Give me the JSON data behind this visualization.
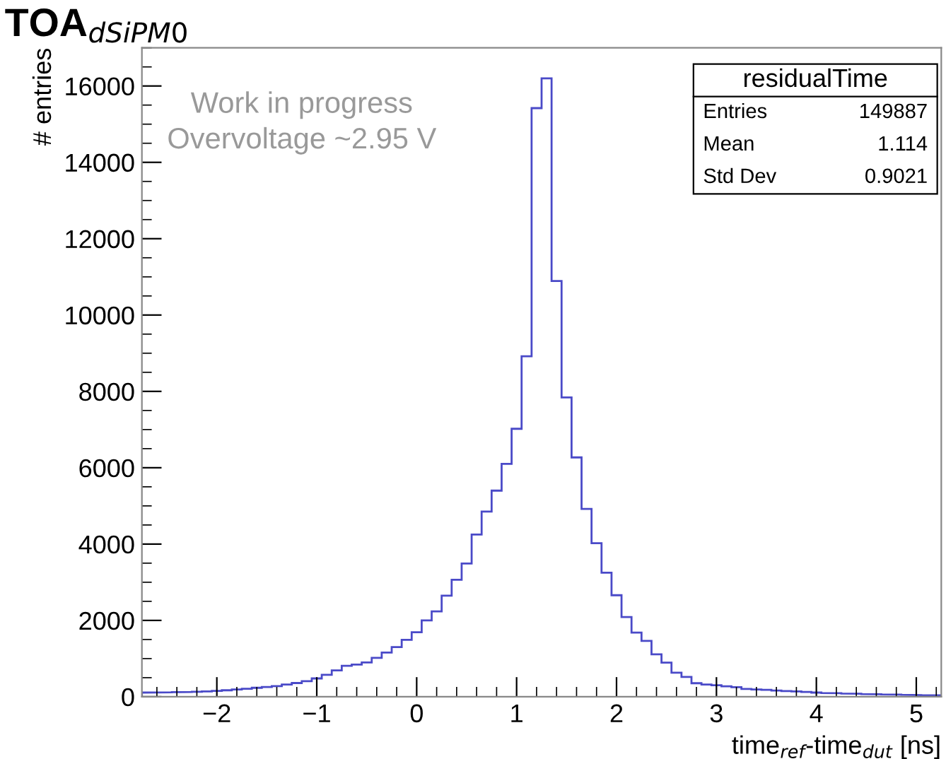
{
  "chart_data": {
    "type": "histogram",
    "title": "TOA$_{dSiPM0}$",
    "xlabel": "time$_{ref}$-time$_{dut}$ [ns]",
    "ylabel": "# entries",
    "bins": [
      -2.75,
      -2.65,
      -2.55,
      -2.45,
      -2.35,
      -2.25,
      -2.15,
      -2.05,
      -1.95,
      -1.85,
      -1.75,
      -1.65,
      -1.55,
      -1.45,
      -1.35,
      -1.25,
      -1.15,
      -1.05,
      -0.95,
      -0.85,
      -0.75,
      -0.65,
      -0.55,
      -0.45,
      -0.35,
      -0.25,
      -0.15,
      -0.05,
      0.05,
      0.15,
      0.25,
      0.35,
      0.45,
      0.55,
      0.65,
      0.75,
      0.85,
      0.95,
      1.05,
      1.15,
      1.25,
      1.35,
      1.45,
      1.55,
      1.65,
      1.75,
      1.85,
      1.95,
      2.05,
      2.15,
      2.25,
      2.35,
      2.45,
      2.55,
      2.65,
      2.75,
      2.85,
      2.95,
      3.05,
      3.15,
      3.25,
      3.35,
      3.45,
      3.55,
      3.65,
      3.75,
      3.85,
      3.95,
      4.05,
      4.15,
      4.25,
      4.35,
      4.45,
      4.55,
      4.65,
      4.75,
      4.85,
      4.95,
      5.05,
      5.15,
      5.25
    ],
    "values": [
      110,
      110,
      115,
      120,
      125,
      130,
      140,
      155,
      170,
      190,
      210,
      235,
      255,
      280,
      320,
      360,
      410,
      480,
      575,
      690,
      810,
      845,
      900,
      1020,
      1160,
      1300,
      1490,
      1690,
      2000,
      2235,
      2650,
      3065,
      3490,
      4250,
      4850,
      5400,
      6100,
      7020,
      8920,
      15420,
      16200,
      10890,
      7840,
      6270,
      4920,
      4025,
      3250,
      2660,
      2090,
      1680,
      1465,
      1110,
      895,
      630,
      520,
      355,
      320,
      300,
      275,
      250,
      205,
      190,
      180,
      165,
      150,
      140,
      125,
      110,
      100,
      95,
      85,
      80,
      70,
      65,
      60,
      55,
      50,
      45,
      40,
      40
    ],
    "color": "#4a4ac8",
    "xlim": [
      -2.75,
      5.25
    ],
    "ylim": [
      0,
      17000
    ],
    "xticks": [
      -2,
      -1,
      0,
      1,
      2,
      3,
      4,
      5
    ],
    "yticks": [
      0,
      2000,
      4000,
      6000,
      8000,
      10000,
      12000,
      14000,
      16000
    ],
    "grid": false,
    "legend": false,
    "annotations": [
      "Work in progress",
      "Overvoltage ~2.95 V",
      "residualTime",
      "Entries",
      "149887",
      "Mean",
      "1.114",
      "Std Dev",
      "0.9021"
    ]
  }
}
